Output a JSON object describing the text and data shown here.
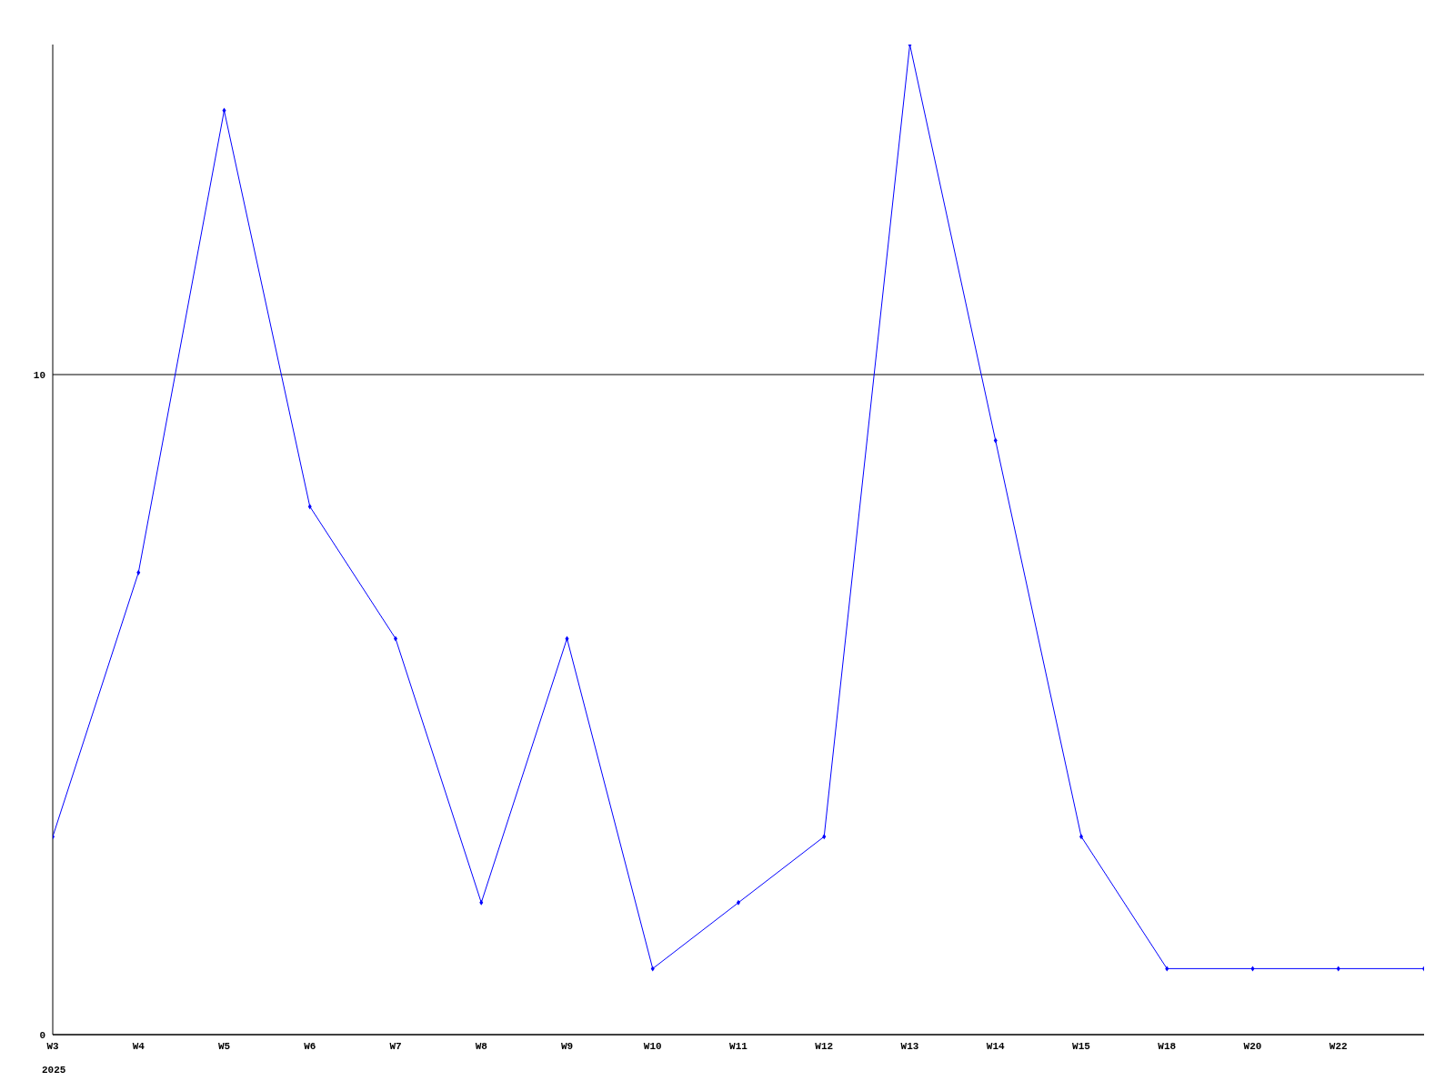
{
  "chart_data": {
    "type": "line",
    "categories": [
      "W3",
      "W4",
      "W5",
      "W6",
      "W7",
      "W8",
      "W9",
      "W10",
      "W11",
      "W12",
      "W13",
      "W14",
      "W15",
      "W18",
      "W20",
      "W22",
      null
    ],
    "series": [
      {
        "color": "#0000ff",
        "values": [
          3,
          7,
          14,
          8,
          6,
          2,
          6,
          1,
          2,
          3,
          15,
          9,
          3,
          1,
          1,
          1,
          1
        ]
      }
    ],
    "ylim": [
      0,
      15
    ],
    "yticks": [
      0,
      10
    ],
    "grid": "y",
    "marker": "diamond",
    "line_style": "solid",
    "annotations": [
      "2025"
    ]
  }
}
